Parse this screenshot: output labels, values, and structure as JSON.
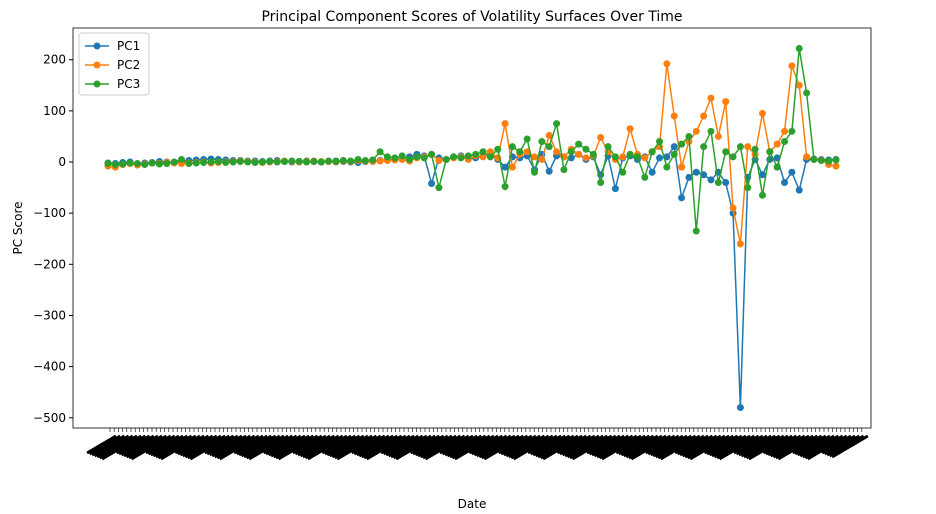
{
  "chart_data": {
    "type": "line",
    "title": "Principal Component Scores of Volatility Surfaces Over Time",
    "x_label": "Date",
    "y_label": "PC Score",
    "ylim": [
      -520,
      262
    ],
    "yticks": [
      {
        "value": -500,
        "label": "−500"
      },
      {
        "value": -400,
        "label": "−400"
      },
      {
        "value": -300,
        "label": "−300"
      },
      {
        "value": -200,
        "label": "−200"
      },
      {
        "value": -100,
        "label": "−100"
      },
      0,
      100,
      200
    ],
    "legend": "upper left",
    "series": [
      {
        "name": "PC1",
        "color": "#1f77b4",
        "values": [
          -2,
          -3,
          -1,
          0,
          -4,
          -2,
          -1,
          1,
          0,
          -1,
          2,
          3,
          4,
          5,
          6,
          5,
          4,
          3,
          3,
          2,
          2,
          1,
          2,
          3,
          1,
          0,
          1,
          2,
          1,
          0,
          1,
          2,
          1,
          0,
          -1,
          1,
          2,
          3,
          4,
          5,
          6,
          10,
          15,
          12,
          -42,
          8,
          5,
          10,
          12,
          6,
          8,
          12,
          15,
          5,
          -10,
          10,
          8,
          12,
          -15,
          15,
          -18,
          12,
          10,
          8,
          15,
          5,
          10,
          -25,
          12,
          -52,
          8,
          12,
          5,
          10,
          -20,
          8,
          10,
          30,
          -70,
          -30,
          -20,
          -25,
          -35,
          -20,
          -40,
          -100,
          -480,
          -30,
          5,
          -25,
          5,
          8,
          -40,
          -20,
          -55,
          5,
          6,
          5,
          4,
          5
        ]
      },
      {
        "name": "PC2",
        "color": "#ff7f0e",
        "values": [
          -8,
          -10,
          -5,
          -3,
          -6,
          -4,
          -2,
          -3,
          -1,
          -2,
          -3,
          -2,
          -1,
          0,
          -2,
          -1,
          0,
          1,
          2,
          1,
          0,
          -1,
          0,
          1,
          2,
          1,
          0,
          1,
          2,
          1,
          1,
          0,
          2,
          1,
          3,
          2,
          1,
          2,
          3,
          4,
          5,
          2,
          8,
          10,
          15,
          3,
          5,
          8,
          10,
          5,
          12,
          10,
          20,
          8,
          75,
          -10,
          15,
          20,
          10,
          5,
          52,
          20,
          10,
          25,
          15,
          8,
          12,
          48,
          20,
          5,
          10,
          65,
          15,
          8,
          20,
          30,
          192,
          90,
          -10,
          40,
          60,
          90,
          125,
          50,
          118,
          -90,
          -160,
          30,
          15,
          95,
          20,
          35,
          60,
          188,
          150,
          10,
          5,
          4,
          -5,
          -8
        ]
      },
      {
        "name": "PC3",
        "color": "#2ca02c",
        "values": [
          -3,
          -5,
          -4,
          -2,
          -3,
          -5,
          -2,
          -4,
          -3,
          0,
          5,
          -3,
          -2,
          -1,
          0,
          1,
          -1,
          0,
          1,
          0,
          -1,
          0,
          1,
          0,
          1,
          2,
          1,
          0,
          1,
          0,
          2,
          1,
          3,
          2,
          5,
          3,
          4,
          20,
          10,
          8,
          12,
          5,
          10,
          8,
          15,
          -50,
          5,
          10,
          8,
          12,
          15,
          20,
          10,
          25,
          -48,
          30,
          20,
          45,
          -20,
          40,
          30,
          75,
          -15,
          20,
          35,
          25,
          15,
          -40,
          30,
          10,
          -20,
          15,
          10,
          -30,
          20,
          40,
          -10,
          15,
          35,
          50,
          -135,
          30,
          60,
          -40,
          20,
          10,
          30,
          -50,
          25,
          -65,
          20,
          -10,
          40,
          60,
          222,
          135,
          5,
          3,
          2,
          4
        ]
      }
    ]
  }
}
